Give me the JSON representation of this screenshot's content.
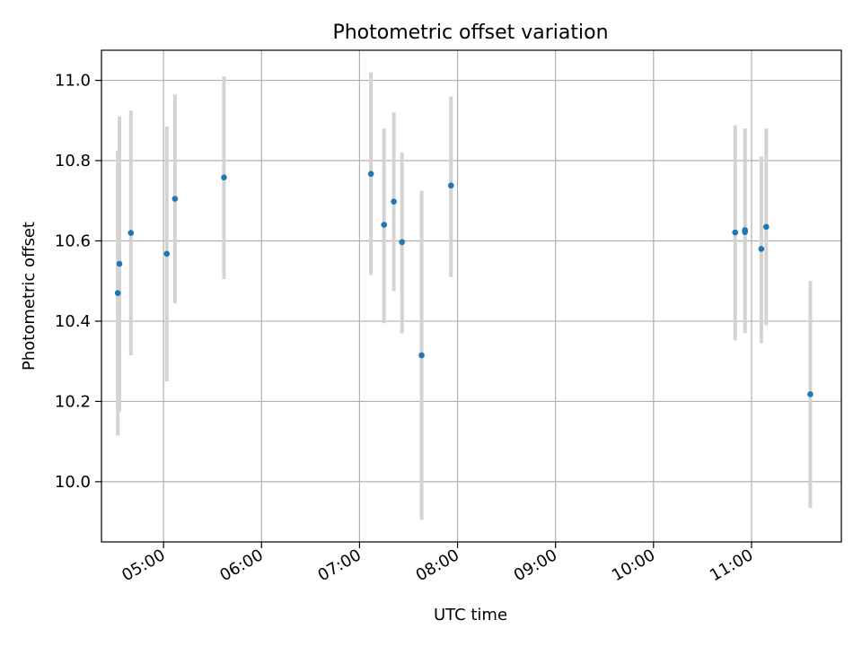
{
  "chart_data": {
    "type": "scatter",
    "title": "Photometric offset variation",
    "xlabel": "UTC time",
    "ylabel": "Photometric offset",
    "xlim": [
      "04:22",
      "11:55"
    ],
    "ylim": [
      9.85,
      11.075
    ],
    "x_ticks": [
      "05:00",
      "06:00",
      "07:00",
      "08:00",
      "09:00",
      "10:00",
      "11:00"
    ],
    "y_ticks": [
      10.0,
      10.2,
      10.4,
      10.6,
      10.8,
      11.0
    ],
    "y_tick_labels": [
      "10.0",
      "10.2",
      "10.4",
      "10.6",
      "10.8",
      "11.0"
    ],
    "grid": true,
    "series": [
      {
        "color": "#1f77b4",
        "errorbar_color": "#d3d3d3",
        "points": [
          {
            "x": "04:32",
            "y": 10.47,
            "ylow": 10.115,
            "yhigh": 10.825
          },
          {
            "x": "04:33",
            "y": 10.543,
            "ylow": 10.175,
            "yhigh": 10.91
          },
          {
            "x": "04:40",
            "y": 10.62,
            "ylow": 10.315,
            "yhigh": 10.925
          },
          {
            "x": "05:02",
            "y": 10.568,
            "ylow": 10.25,
            "yhigh": 10.885
          },
          {
            "x": "05:07",
            "y": 10.705,
            "ylow": 10.445,
            "yhigh": 10.965
          },
          {
            "x": "05:37",
            "y": 10.758,
            "ylow": 10.505,
            "yhigh": 11.01
          },
          {
            "x": "07:07",
            "y": 10.767,
            "ylow": 10.515,
            "yhigh": 11.02
          },
          {
            "x": "07:15",
            "y": 10.64,
            "ylow": 10.395,
            "yhigh": 10.88
          },
          {
            "x": "07:21",
            "y": 10.698,
            "ylow": 10.475,
            "yhigh": 10.92
          },
          {
            "x": "07:26",
            "y": 10.597,
            "ylow": 10.37,
            "yhigh": 10.82
          },
          {
            "x": "07:38",
            "y": 10.315,
            "ylow": 9.905,
            "yhigh": 10.725
          },
          {
            "x": "07:56",
            "y": 10.738,
            "ylow": 10.51,
            "yhigh": 10.96
          },
          {
            "x": "10:50",
            "y": 10.621,
            "ylow": 10.352,
            "yhigh": 10.888
          },
          {
            "x": "10:56",
            "y": 10.622,
            "ylow": 10.37,
            "yhigh": 10.88
          },
          {
            "x": "10:56",
            "y": 10.627,
            "ylow": 10.375,
            "yhigh": 10.88
          },
          {
            "x": "11:06",
            "y": 10.58,
            "ylow": 10.345,
            "yhigh": 10.81
          },
          {
            "x": "11:09",
            "y": 10.635,
            "ylow": 10.39,
            "yhigh": 10.88
          },
          {
            "x": "11:36",
            "y": 10.218,
            "ylow": 9.935,
            "yhigh": 10.5
          }
        ]
      }
    ]
  }
}
